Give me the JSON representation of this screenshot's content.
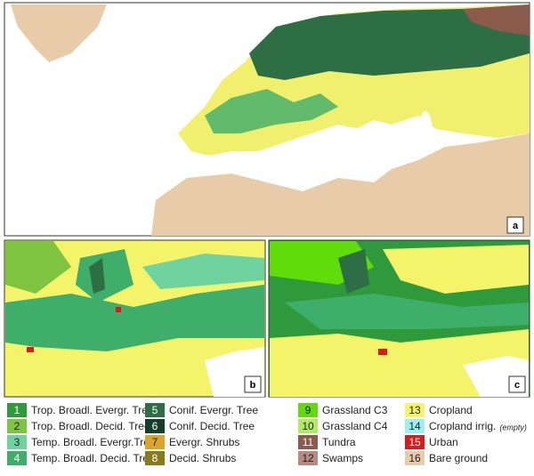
{
  "panels": [
    {
      "label": "a"
    },
    {
      "label": "b"
    },
    {
      "label": "c"
    }
  ],
  "legend": [
    {
      "number": 1,
      "label": "Trop. Broadl. Evergr. Tree",
      "color": "#2f9a3c"
    },
    {
      "number": 2,
      "label": "Trop. Broadl. Decid. Tree",
      "color": "#7fc441"
    },
    {
      "number": 3,
      "label": "Temp. Broadl. Evergr.Tree",
      "color": "#6fd3a0"
    },
    {
      "number": 4,
      "label": "Temp. Broadl. Decid. Tree",
      "color": "#3fae6a"
    },
    {
      "number": 5,
      "label": "Conif. Evergr. Tree",
      "color": "#2e6e45"
    },
    {
      "number": 6,
      "label": "Conif. Decid. Tree",
      "color": "#163d28"
    },
    {
      "number": 7,
      "label": "Evergr. Shrubs",
      "color": "#d9a62a"
    },
    {
      "number": 8,
      "label": "Decid. Shrubs",
      "color": "#8a7a1e"
    },
    {
      "number": 9,
      "label": "Grassland C3",
      "color": "#5fdc0a"
    },
    {
      "number": 10,
      "label": "Grassland C4",
      "color": "#b2ea66"
    },
    {
      "number": 11,
      "label": "Tundra",
      "color": "#8a5a4c"
    },
    {
      "number": 12,
      "label": "Swamps",
      "color": "#b98a84"
    },
    {
      "number": 13,
      "label": "Cropland",
      "color": "#f4f46a"
    },
    {
      "number": 14,
      "label": "Cropland irrig.",
      "note": "(empty)",
      "color": "#9cf0f0"
    },
    {
      "number": 15,
      "label": "Urban",
      "color": "#dd1a1a"
    },
    {
      "number": 16,
      "label": "Bare ground",
      "color": "#e8cba8"
    }
  ]
}
